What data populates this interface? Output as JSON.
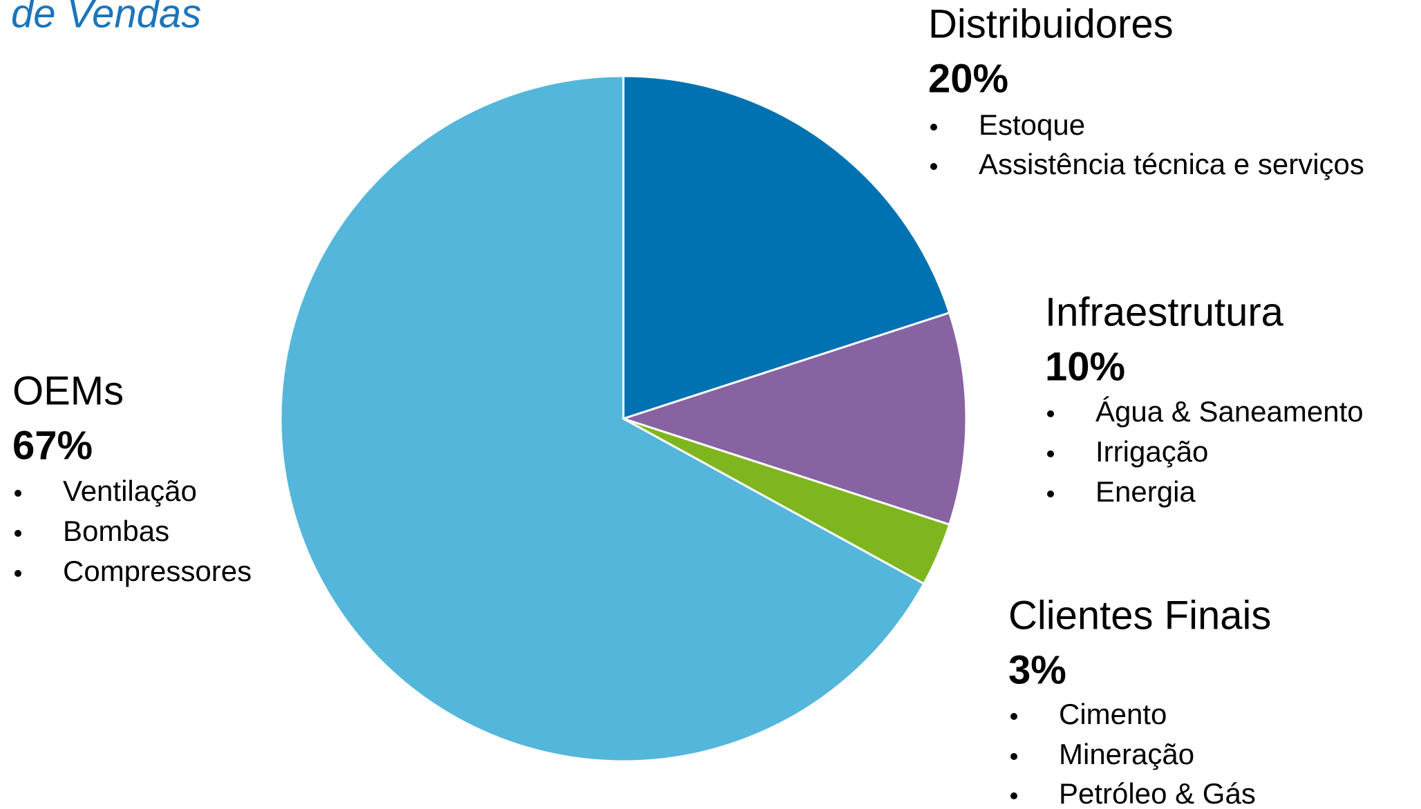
{
  "chart_data": {
    "type": "pie",
    "title": "de Vendas",
    "categories": [
      "Distribuidores",
      "Infraestrutura",
      "Clientes Finais",
      "OEMs"
    ],
    "values": [
      20,
      10,
      3,
      67
    ],
    "value_labels": [
      "20%",
      "10%",
      "3%",
      "67%"
    ],
    "colors": [
      "#0072b1",
      "#8863a2",
      "#7fb61f",
      "#55b6db"
    ],
    "details": [
      [
        "Estoque",
        "Assistência técnica e serviços"
      ],
      [
        "Água & Saneamento",
        "Irrigação",
        "Energia"
      ],
      [
        "Cimento",
        "Mineração",
        "Petróleo & Gás"
      ],
      [
        "Ventilação",
        "Bombas",
        "Compressores"
      ]
    ]
  }
}
